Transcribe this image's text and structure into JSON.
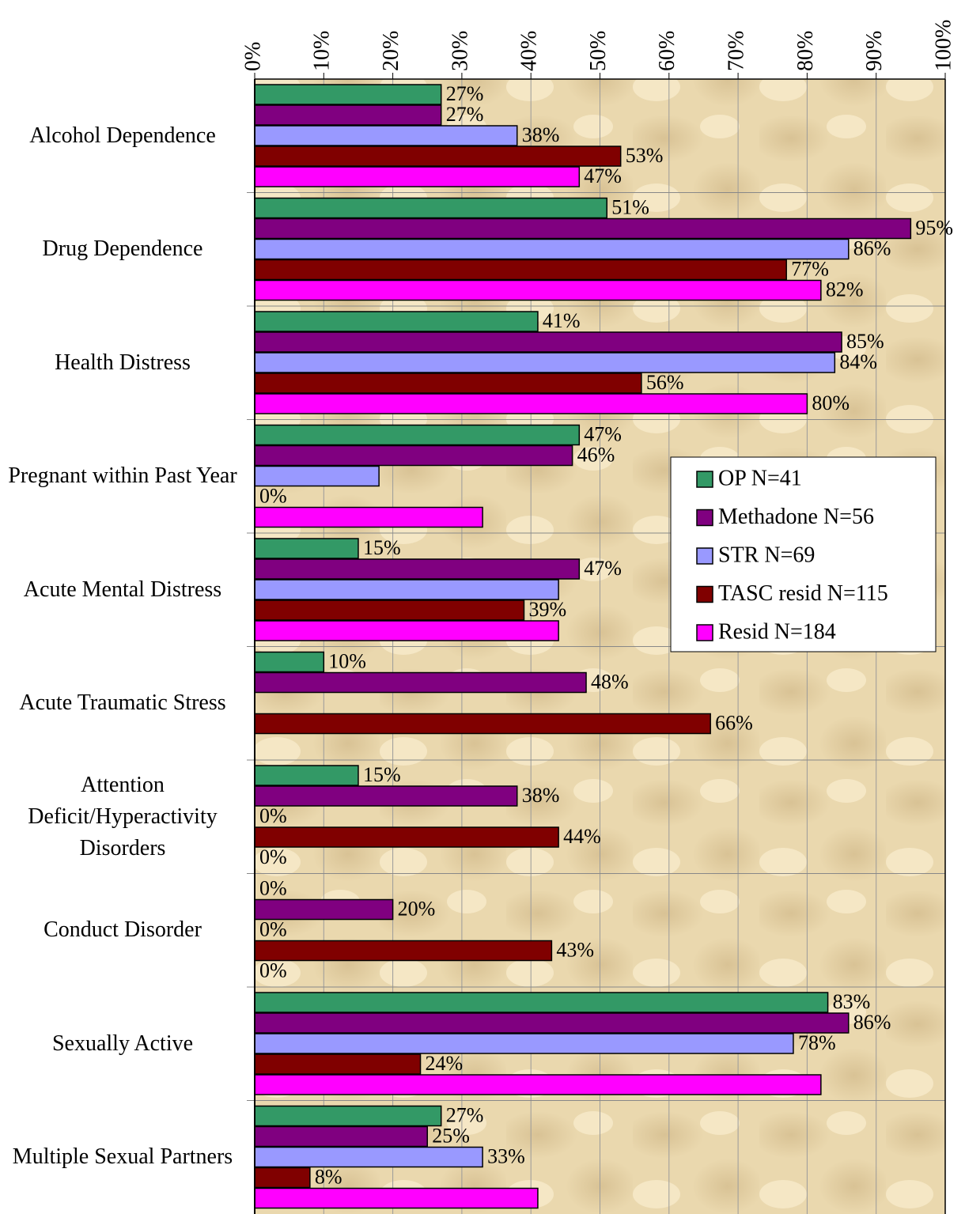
{
  "chart_data": {
    "type": "bar",
    "orientation": "horizontal",
    "categories": [
      "Alcohol Dependence",
      "Drug Dependence",
      "Health Distress",
      "Pregnant within Past Year",
      "Acute Mental Distress",
      "Acute Traumatic Stress",
      "Attention Deficit/Hyperactivity Disorders",
      "Conduct Disorder",
      "Sexually Active",
      "Multiple Sexual Partners"
    ],
    "series": [
      {
        "name": "OP N=41",
        "color": "#339966",
        "values": [
          27,
          51,
          41,
          47,
          15,
          10,
          15,
          0,
          83,
          27
        ],
        "value_labels": [
          "27%",
          "51%",
          "41%",
          "47%",
          "15%",
          "10%",
          "15%",
          "0%",
          "83%",
          "27%"
        ]
      },
      {
        "name": "Methadone N=56",
        "color": "#800080",
        "values": [
          27,
          95,
          85,
          46,
          47,
          48,
          38,
          20,
          86,
          25
        ],
        "value_labels": [
          "27%",
          "95%",
          "85%",
          "46%",
          "47%",
          "48%",
          "38%",
          "20%",
          "86%",
          "25%"
        ]
      },
      {
        "name": "STR N=69",
        "color": "#9999ff",
        "values": [
          38,
          86,
          84,
          18,
          44,
          null,
          0,
          0,
          78,
          33
        ],
        "value_labels": [
          "38%",
          "86%",
          "84%",
          null,
          null,
          null,
          "0%",
          "0%",
          "78%",
          "33%"
        ]
      },
      {
        "name": "TASC resid N=115",
        "color": "#800000",
        "values": [
          53,
          77,
          56,
          0,
          39,
          66,
          44,
          43,
          24,
          8
        ],
        "value_labels": [
          "53%",
          "77%",
          "56%",
          "0%",
          "39%",
          "66%",
          "44%",
          "43%",
          "24%",
          "8%"
        ]
      },
      {
        "name": "Resid N=184",
        "color": "#ff00ff",
        "values": [
          47,
          82,
          80,
          33,
          44,
          null,
          0,
          0,
          82,
          41
        ],
        "value_labels": [
          "47%",
          "82%",
          "80%",
          null,
          null,
          null,
          "0%",
          "0%",
          null,
          null
        ]
      }
    ],
    "xlim": [
      0,
      100
    ],
    "xticks": [
      {
        "value": 0,
        "label": "0%"
      },
      {
        "value": 10,
        "label": "10%"
      },
      {
        "value": 20,
        "label": "20%"
      },
      {
        "value": 30,
        "label": "30%"
      },
      {
        "value": 40,
        "label": "40%"
      },
      {
        "value": 50,
        "label": "50%"
      },
      {
        "value": 60,
        "label": "60%"
      },
      {
        "value": 70,
        "label": "70%"
      },
      {
        "value": 80,
        "label": "80%"
      },
      {
        "value": 90,
        "label": "90%"
      },
      {
        "value": 100,
        "label": "100%"
      }
    ],
    "grid": true,
    "legend": "right"
  }
}
